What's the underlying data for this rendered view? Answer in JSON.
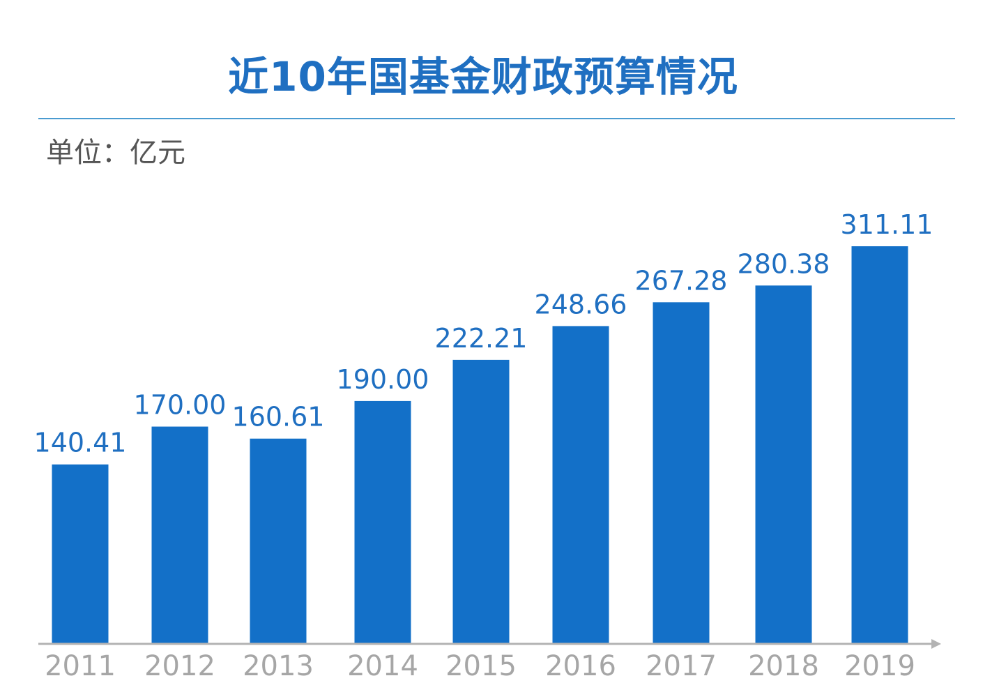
{
  "chart_data": {
    "type": "bar",
    "title": "近10年国基金财政预算情况",
    "unit_label": "单位：亿元",
    "categories": [
      "2011",
      "2012",
      "2013",
      "2014",
      "2015",
      "2016",
      "2017",
      "2018",
      "2019"
    ],
    "values": [
      140.41,
      170.0,
      160.61,
      190.0,
      222.21,
      248.66,
      267.28,
      280.38,
      311.11
    ],
    "value_labels": [
      "140.41",
      "170.00",
      "160.61",
      "190.00",
      "222.21",
      "248.66",
      "267.28",
      "280.38",
      "311.11"
    ],
    "xlabel": "",
    "ylabel": "",
    "ylim": [
      0,
      311.11
    ],
    "grid": false,
    "legend": "none",
    "colors": {
      "bar": "#1370c8",
      "title": "#1f6fc1",
      "value_label": "#1f6fc1",
      "tick_label": "#a6a6a6",
      "axis": "#b3b3b3",
      "rule": "#4a9bd0"
    }
  }
}
